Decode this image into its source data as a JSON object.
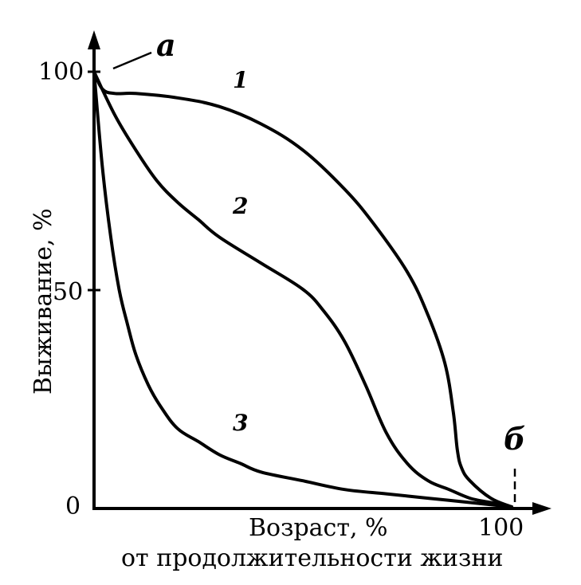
{
  "chart_data": {
    "type": "line",
    "title": "",
    "ylabel": "Выживание, %",
    "xlabel_line1": "Возраст, %",
    "xlabel_line2": "от продолжительности жизни",
    "xlim": [
      0,
      100
    ],
    "ylim": [
      0,
      100
    ],
    "x_tick_labels": [
      "100"
    ],
    "y_tick_labels": [
      "0",
      "50",
      "100"
    ],
    "grid": false,
    "point_labels": {
      "a": "а",
      "b": "б"
    },
    "series": [
      {
        "name": "1",
        "x": [
          0,
          2,
          5,
          10,
          20,
          30,
          40,
          50,
          60,
          67,
          75,
          80,
          84,
          86,
          87,
          88,
          90,
          95,
          100
        ],
        "y": [
          100,
          96,
          95,
          95,
          94,
          92,
          88,
          82,
          73,
          65,
          54,
          44,
          33,
          22,
          13,
          9,
          6,
          2,
          0
        ]
      },
      {
        "name": "2",
        "x": [
          0,
          5,
          10,
          15,
          20,
          25,
          30,
          40,
          50,
          55,
          60,
          65,
          70,
          75,
          80,
          85,
          90,
          95,
          100
        ],
        "y": [
          100,
          90,
          82,
          75,
          70,
          66,
          62,
          56,
          50,
          45,
          38,
          28,
          17,
          10,
          6,
          4,
          2,
          1,
          0
        ]
      },
      {
        "name": "3",
        "x": [
          0,
          2,
          4,
          6,
          8,
          10,
          13,
          16,
          20,
          25,
          30,
          35,
          40,
          50,
          60,
          70,
          80,
          90,
          100
        ],
        "y": [
          100,
          78,
          62,
          50,
          42,
          35,
          28,
          23,
          18,
          15,
          12,
          10,
          8,
          6,
          4,
          3,
          2,
          1,
          0
        ]
      }
    ]
  }
}
